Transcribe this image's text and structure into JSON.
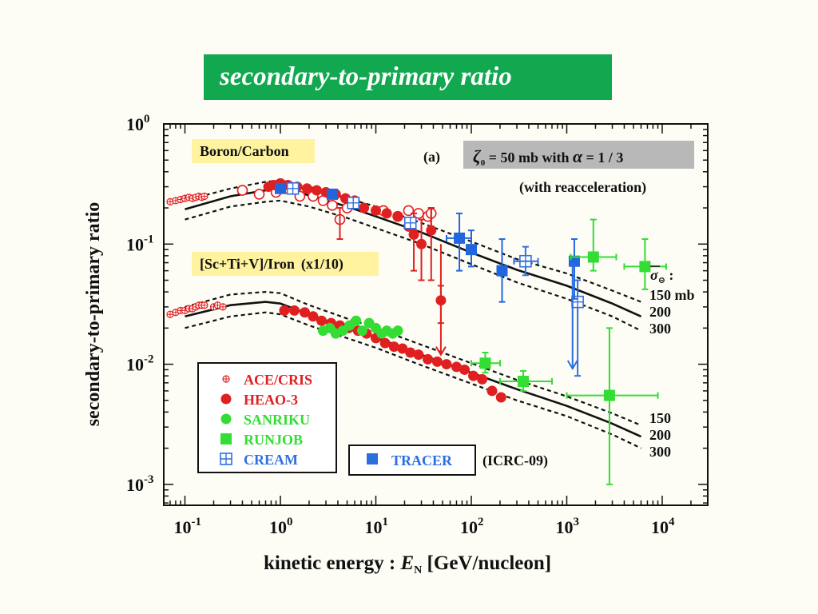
{
  "slide": {
    "title": "secondary-to-primary ratio"
  },
  "chart_data": {
    "type": "scatter",
    "xlabel_prefix": "kinetic energy : ",
    "xlabel_symbol": "E",
    "xlabel_subscript": "N",
    "xlabel_suffix": " [GeV/nucleon]",
    "ylabel": "secondary-to-primary ratio",
    "x_scale": "log",
    "y_scale": "log",
    "xlim": [
      0.06,
      30000
    ],
    "ylim": [
      0.00067,
      1.0
    ],
    "x_ticks": [
      {
        "value": 0.1,
        "base": "10",
        "exp": "-1"
      },
      {
        "value": 1,
        "base": "10",
        "exp": "0"
      },
      {
        "value": 10,
        "base": "10",
        "exp": "1"
      },
      {
        "value": 100,
        "base": "10",
        "exp": "2"
      },
      {
        "value": 1000,
        "base": "10",
        "exp": "3"
      },
      {
        "value": 10000,
        "base": "10",
        "exp": "4"
      }
    ],
    "y_ticks": [
      {
        "value": 1.0,
        "base": "10",
        "exp": "0"
      },
      {
        "value": 0.1,
        "base": "10",
        "exp": "-1"
      },
      {
        "value": 0.01,
        "base": "10",
        "exp": "-2"
      },
      {
        "value": 0.001,
        "base": "10",
        "exp": "-3"
      }
    ],
    "annotations": {
      "panel_label": "(a)",
      "zeta": "ζ",
      "zeta_sub": "0",
      "param_text": " = 50 mb  with ",
      "alpha": "α",
      "alpha_value": " = 1 / 3",
      "reaccel": "(with reacceleration)",
      "bc_label": "Boron/Carbon",
      "iron_label": "[Sc+Ti+V]/Iron",
      "iron_scale": "(x1/10)",
      "sigma_symbol": "σ",
      "sigma_sub": "⊝",
      "sigma_colon": " :",
      "bc_curve_labels": [
        "150 mb",
        "200",
        "300"
      ],
      "iron_curve_labels": [
        "150",
        "200",
        "300"
      ],
      "icrc": "(ICRC-09)"
    },
    "models": [
      {
        "group": "B/C",
        "cross_section": "150 mb",
        "style": "dashed",
        "points": [
          [
            0.1,
            0.23
          ],
          [
            0.3,
            0.29
          ],
          [
            0.7,
            0.33
          ],
          [
            1,
            0.34
          ],
          [
            2,
            0.3
          ],
          [
            5,
            0.24
          ],
          [
            10,
            0.205
          ],
          [
            30,
            0.15
          ],
          [
            100,
            0.105
          ],
          [
            300,
            0.075
          ],
          [
            1000,
            0.057
          ],
          [
            3000,
            0.041
          ],
          [
            6000,
            0.033
          ]
        ]
      },
      {
        "group": "B/C",
        "cross_section": "200",
        "style": "solid",
        "points": [
          [
            0.1,
            0.195
          ],
          [
            0.3,
            0.25
          ],
          [
            0.7,
            0.28
          ],
          [
            1,
            0.285
          ],
          [
            2,
            0.255
          ],
          [
            5,
            0.205
          ],
          [
            10,
            0.17
          ],
          [
            30,
            0.125
          ],
          [
            100,
            0.085
          ],
          [
            300,
            0.061
          ],
          [
            1000,
            0.045
          ],
          [
            3000,
            0.032
          ],
          [
            6000,
            0.025
          ]
        ]
      },
      {
        "group": "B/C",
        "cross_section": "300",
        "style": "dashed",
        "points": [
          [
            0.1,
            0.16
          ],
          [
            0.3,
            0.205
          ],
          [
            0.7,
            0.225
          ],
          [
            1,
            0.23
          ],
          [
            2,
            0.205
          ],
          [
            5,
            0.165
          ],
          [
            10,
            0.136
          ],
          [
            30,
            0.1
          ],
          [
            100,
            0.068
          ],
          [
            300,
            0.048
          ],
          [
            1000,
            0.035
          ],
          [
            3000,
            0.025
          ],
          [
            6000,
            0.019
          ]
        ]
      },
      {
        "group": "Sub-Fe/Fe",
        "cross_section": "150",
        "style": "dashed",
        "points": [
          [
            0.1,
            0.03
          ],
          [
            0.3,
            0.038
          ],
          [
            0.7,
            0.04
          ],
          [
            1,
            0.039
          ],
          [
            2,
            0.031
          ],
          [
            5,
            0.024
          ],
          [
            10,
            0.02
          ],
          [
            30,
            0.0145
          ],
          [
            100,
            0.0102
          ],
          [
            300,
            0.0074
          ],
          [
            1000,
            0.0054
          ],
          [
            3000,
            0.0039
          ],
          [
            6000,
            0.0031
          ]
        ]
      },
      {
        "group": "Sub-Fe/Fe",
        "cross_section": "200",
        "style": "solid",
        "points": [
          [
            0.1,
            0.025
          ],
          [
            0.3,
            0.031
          ],
          [
            0.7,
            0.033
          ],
          [
            1,
            0.032
          ],
          [
            2,
            0.026
          ],
          [
            5,
            0.02
          ],
          [
            10,
            0.0167
          ],
          [
            30,
            0.012
          ],
          [
            100,
            0.0085
          ],
          [
            300,
            0.0062
          ],
          [
            1000,
            0.0045
          ],
          [
            3000,
            0.0032
          ],
          [
            6000,
            0.0025
          ]
        ]
      },
      {
        "group": "Sub-Fe/Fe",
        "cross_section": "300",
        "style": "dashed",
        "points": [
          [
            0.1,
            0.02
          ],
          [
            0.3,
            0.025
          ],
          [
            0.7,
            0.027
          ],
          [
            1,
            0.026
          ],
          [
            2,
            0.021
          ],
          [
            5,
            0.0165
          ],
          [
            10,
            0.0137
          ],
          [
            30,
            0.0098
          ],
          [
            100,
            0.0069
          ],
          [
            300,
            0.005
          ],
          [
            1000,
            0.0037
          ],
          [
            3000,
            0.0026
          ],
          [
            6000,
            0.002
          ]
        ]
      }
    ],
    "series": [
      {
        "name": "ACE/CRIS",
        "color": "#e02020",
        "marker": "plus-circle-small",
        "points": [
          [
            0.07,
            0.225
          ],
          [
            0.08,
            0.23
          ],
          [
            0.09,
            0.235
          ],
          [
            0.1,
            0.24
          ],
          [
            0.11,
            0.245
          ],
          [
            0.12,
            0.24
          ],
          [
            0.13,
            0.245
          ],
          [
            0.14,
            0.25
          ],
          [
            0.15,
            0.245
          ],
          [
            0.16,
            0.25
          ],
          [
            0.07,
            0.026
          ],
          [
            0.08,
            0.027
          ],
          [
            0.09,
            0.028
          ],
          [
            0.1,
            0.028
          ],
          [
            0.11,
            0.029
          ],
          [
            0.12,
            0.029
          ],
          [
            0.13,
            0.03
          ],
          [
            0.14,
            0.031
          ],
          [
            0.15,
            0.031
          ],
          [
            0.16,
            0.031
          ],
          [
            0.2,
            0.03
          ],
          [
            0.22,
            0.031
          ],
          [
            0.25,
            0.03
          ]
        ]
      },
      {
        "name": "HEAO-3",
        "color": "#e02020",
        "marker": "filled-circle",
        "points": [
          [
            0.75,
            0.3,
            0,
            0
          ],
          [
            0.85,
            0.31,
            0,
            0
          ],
          [
            1.0,
            0.32,
            0,
            0
          ],
          [
            1.2,
            0.31,
            0,
            0
          ],
          [
            1.5,
            0.3,
            0,
            0
          ],
          [
            1.9,
            0.29,
            0,
            0
          ],
          [
            2.4,
            0.28,
            0,
            0
          ],
          [
            3,
            0.27,
            0,
            0
          ],
          [
            3.8,
            0.26,
            0,
            0
          ],
          [
            4.8,
            0.24,
            0,
            0
          ],
          [
            6,
            0.23,
            0,
            0
          ],
          [
            7.5,
            0.2,
            0,
            0
          ],
          [
            10,
            0.19,
            0,
            0
          ],
          [
            13,
            0.18,
            0,
            0
          ],
          [
            17,
            0.17,
            0,
            0
          ],
          [
            22,
            0.14,
            0,
            0
          ],
          [
            25,
            0.12,
            0.06,
            0.18
          ],
          [
            30,
            0.1,
            0.05,
            0.16
          ],
          [
            38,
            0.13,
            0.05,
            0.2
          ],
          [
            48,
            0.034,
            0.022,
            0.045
          ],
          [
            1.1,
            0.028,
            0,
            0
          ],
          [
            1.4,
            0.028,
            0,
            0
          ],
          [
            1.8,
            0.027,
            0,
            0
          ],
          [
            2.2,
            0.025,
            0,
            0
          ],
          [
            2.7,
            0.023,
            0,
            0
          ],
          [
            3.4,
            0.022,
            0,
            0
          ],
          [
            4.2,
            0.021,
            0,
            0
          ],
          [
            5.2,
            0.02,
            0,
            0
          ],
          [
            6.5,
            0.019,
            0,
            0
          ],
          [
            8,
            0.018,
            0,
            0
          ],
          [
            10,
            0.0165,
            0,
            0
          ],
          [
            12.5,
            0.015,
            0,
            0
          ],
          [
            15.5,
            0.014,
            0,
            0
          ],
          [
            19,
            0.0135,
            0,
            0
          ],
          [
            23,
            0.0125,
            0,
            0
          ],
          [
            28,
            0.012,
            0,
            0
          ],
          [
            35,
            0.011,
            0,
            0
          ],
          [
            44,
            0.0105,
            0,
            0
          ],
          [
            55,
            0.01,
            0,
            0
          ],
          [
            70,
            0.0095,
            0,
            0
          ],
          [
            85,
            0.009,
            0,
            0
          ],
          [
            105,
            0.008,
            0,
            0
          ],
          [
            130,
            0.0075,
            0,
            0
          ],
          [
            165,
            0.006,
            0,
            0
          ],
          [
            205,
            0.0053,
            0,
            0
          ]
        ]
      },
      {
        "name": "SANRIKU",
        "color": "#33dd33",
        "marker": "filled-circle",
        "points": [
          [
            2.8,
            0.019
          ],
          [
            3.3,
            0.02
          ],
          [
            3.8,
            0.018
          ],
          [
            4.5,
            0.019
          ],
          [
            5.3,
            0.021
          ],
          [
            6.2,
            0.023
          ],
          [
            7.2,
            0.019
          ],
          [
            8.5,
            0.022
          ],
          [
            10,
            0.02
          ],
          [
            11.5,
            0.018
          ],
          [
            13,
            0.019
          ],
          [
            15,
            0.018
          ],
          [
            17,
            0.019
          ]
        ]
      },
      {
        "name": "RUNJOB",
        "color": "#33dd33",
        "marker": "filled-square",
        "points": [
          [
            140,
            0.0102,
            0.0085,
            0.0125
          ],
          [
            350,
            0.0072,
            0.006,
            0.0088
          ],
          [
            1900,
            0.078,
            0.06,
            0.16
          ],
          [
            2800,
            0.0055,
            0.001,
            0.02
          ],
          [
            6600,
            0.065,
            0.042,
            0.11
          ]
        ]
      },
      {
        "name": "CREAM",
        "color": "#3070e0",
        "marker": "square-cross",
        "points": [
          [
            1.35,
            0.29,
            0,
            0
          ],
          [
            5.8,
            0.22,
            0,
            0
          ],
          [
            23,
            0.15,
            0,
            0
          ],
          [
            370,
            0.072,
            0.055,
            0.095
          ],
          [
            1300,
            0.033,
            0.008,
            0.05
          ]
        ]
      },
      {
        "name": "TRACER",
        "color": "#2266dd",
        "marker": "filled-square",
        "points": [
          [
            1.0,
            0.29,
            0,
            0
          ],
          [
            3.5,
            0.26,
            0,
            0
          ],
          [
            75,
            0.112,
            0.06,
            0.18
          ],
          [
            100,
            0.09,
            0.065,
            0.13
          ],
          [
            210,
            0.06,
            0.033,
            0.11
          ],
          [
            1200,
            0.072,
            0.035,
            0.11
          ]
        ]
      }
    ],
    "open_circles_bc": {
      "name": "open-circles",
      "color": "#e02020",
      "points": [
        [
          0.4,
          0.28
        ],
        [
          0.6,
          0.26
        ],
        [
          0.9,
          0.27
        ],
        [
          1.2,
          0.29
        ],
        [
          1.6,
          0.25
        ],
        [
          2.2,
          0.25
        ],
        [
          2.8,
          0.23
        ],
        [
          3.5,
          0.21
        ],
        [
          4.2,
          0.16
        ],
        [
          5,
          0.2
        ],
        [
          12,
          0.19
        ],
        [
          17,
          0.17
        ],
        [
          22,
          0.19
        ],
        [
          28,
          0.18
        ],
        [
          35,
          0.17
        ],
        [
          38,
          0.18
        ]
      ]
    },
    "legend": {
      "labels": [
        "ACE/CRIS",
        "HEAO-3",
        "SANRIKU",
        "RUNJOB",
        "CREAM"
      ],
      "extra_label": "TRACER"
    },
    "colors": {
      "red": "#e02020",
      "green": "#33dd33",
      "blue": "#2a6ee0",
      "highlight": "#fff3a0",
      "gray_box": "#b8b8b8"
    }
  }
}
